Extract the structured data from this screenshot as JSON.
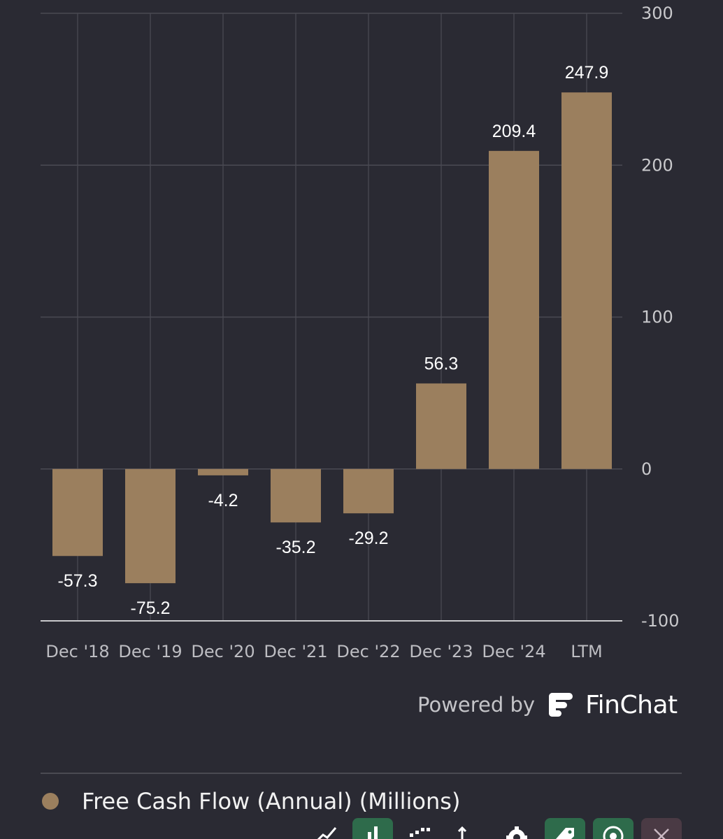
{
  "chart_data": {
    "type": "bar",
    "categories": [
      "Dec '18",
      "Dec '19",
      "Dec '20",
      "Dec '21",
      "Dec '22",
      "Dec '23",
      "Dec '24",
      "LTM"
    ],
    "values": [
      -57.3,
      -75.2,
      -4.2,
      -35.2,
      -29.2,
      56.3,
      209.4,
      247.9
    ],
    "value_labels": [
      "-57.3",
      "-75.2",
      "-4.2",
      "-35.2",
      "-29.2",
      "56.3",
      "209.4",
      "247.9"
    ],
    "ylim": [
      -100,
      300
    ],
    "yticks": [
      300,
      200,
      100,
      0,
      -100
    ],
    "ytick_labels": [
      "300",
      "200",
      "100",
      "0",
      "-100"
    ],
    "y_axis_position": "right",
    "grid": true,
    "bar_color": "#9b7f5e",
    "series": [
      {
        "name": "Free Cash Flow (Annual) (Millions)"
      }
    ]
  },
  "branding": {
    "powered_by": "Powered by",
    "brand_name": "FinChat"
  },
  "legend": {
    "label": "Free Cash Flow (Annual) (Millions)",
    "color": "#9b7f5e"
  },
  "toolbar": {
    "buttons": [
      {
        "icon": "line-chart-icon",
        "active": false
      },
      {
        "icon": "bar-chart-icon",
        "active": true,
        "color": "#2e6b4b"
      },
      {
        "icon": "stacked-bars-icon",
        "active": false
      },
      {
        "icon": "sort-arrows-icon",
        "active": false
      },
      {
        "icon": "gear-icon",
        "active": false
      },
      {
        "icon": "tag-icon",
        "active": true,
        "color": "#2e6b4b"
      },
      {
        "icon": "eye-icon",
        "active": true,
        "color": "#2e6b4b"
      },
      {
        "icon": "close-icon",
        "active": true,
        "color": "#4a3a44"
      }
    ]
  }
}
